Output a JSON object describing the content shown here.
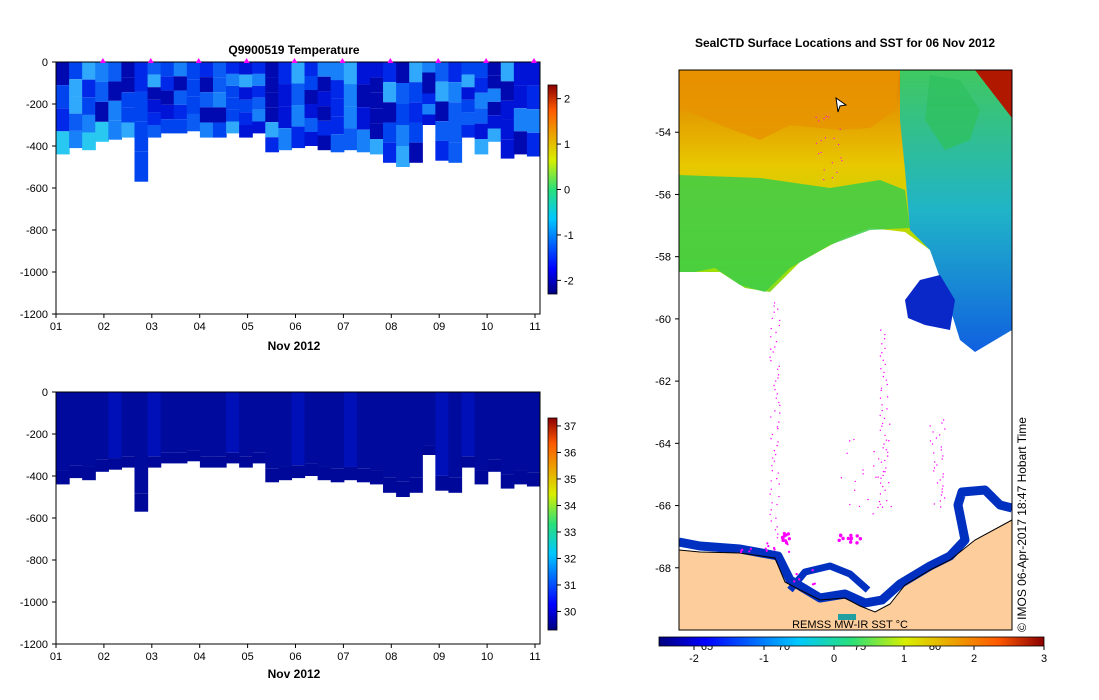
{
  "chart_data": [
    {
      "type": "heatmap",
      "title": "Q9900519  Temperature",
      "xlabel": "Nov 2012",
      "ylabel": "",
      "x_ticks": [
        "01",
        "02",
        "03",
        "04",
        "05",
        "06",
        "07",
        "08",
        "09",
        "10",
        "11"
      ],
      "y_ticks": [
        0,
        -200,
        -400,
        -600,
        -800,
        -1000,
        -1200
      ],
      "ylim": [
        -1200,
        0
      ],
      "colorbar_ticks": [
        2,
        1,
        0,
        -1,
        -2
      ],
      "colorbar_range": [
        -2.3,
        2.3
      ],
      "surface_markers_days": [
        2,
        3,
        4,
        5,
        6,
        7,
        8,
        9,
        10,
        11
      ],
      "profile_depths": [
        -440,
        -410,
        -420,
        -380,
        -370,
        -360,
        -570,
        -360,
        -340,
        -340,
        -330,
        -360,
        -360,
        -340,
        -360,
        -340,
        -430,
        -420,
        -410,
        -400,
        -420,
        -430,
        -420,
        -430,
        -440,
        -480,
        -500,
        -480,
        -300,
        -470,
        -480,
        -360,
        -440,
        -380,
        -460,
        -440,
        -450
      ]
    },
    {
      "type": "heatmap",
      "title": "",
      "xlabel": "Nov 2012",
      "ylabel": "",
      "x_ticks": [
        "01",
        "02",
        "03",
        "04",
        "05",
        "06",
        "07",
        "08",
        "09",
        "10",
        "11"
      ],
      "y_ticks": [
        0,
        -200,
        -400,
        -600,
        -800,
        -1000,
        -1200
      ],
      "ylim": [
        -1200,
        0
      ],
      "colorbar_ticks": [
        37,
        36,
        35,
        34,
        33,
        32,
        31,
        30
      ],
      "colorbar_range": [
        29.3,
        37.3
      ],
      "profile_depths": [
        -440,
        -410,
        -420,
        -380,
        -370,
        -360,
        -570,
        -360,
        -340,
        -340,
        -330,
        -360,
        -360,
        -340,
        -360,
        -340,
        -430,
        -420,
        -410,
        -400,
        -420,
        -430,
        -420,
        -430,
        -440,
        -480,
        -500,
        -480,
        -300,
        -470,
        -480,
        -360,
        -440,
        -380,
        -460,
        -440,
        -450
      ]
    },
    {
      "type": "map",
      "title": "SealCTD Surface Locations and SST for 06 Nov 2012",
      "lat_ticks": [
        -54,
        -56,
        -58,
        -60,
        -62,
        -64,
        -66,
        -68
      ],
      "lat_range": [
        -52.0,
        -70.0
      ],
      "lon_labels": [
        "65",
        "70",
        "75",
        "80"
      ],
      "colorbar_ticks": [
        -2,
        -1,
        0,
        1,
        2,
        3
      ],
      "colorbar_range": [
        -2.5,
        3
      ],
      "colorbar_label": "REMSS MW-IR SST °C",
      "footer_text": "© IMOS 06-Apr-2017 18:47 Hobart Time"
    }
  ],
  "colors": {
    "deep_blue": "#00007f",
    "land": "#fdcd9b",
    "track": "#ff00ff",
    "ice": "#ffffff"
  }
}
